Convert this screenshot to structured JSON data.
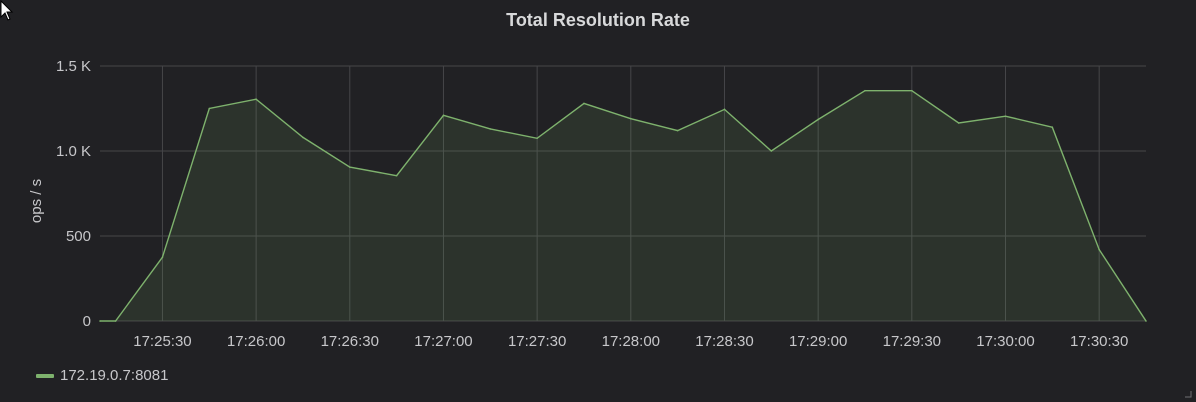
{
  "panel": {
    "title": "Total Resolution Rate"
  },
  "colors": {
    "series": "#7eb26d",
    "grid": "#464649",
    "background": "#212124"
  },
  "chart_data": {
    "type": "area",
    "title": "Total Resolution Rate",
    "xlabel": "",
    "ylabel": "ops / s",
    "x": [
      "17:25:10",
      "17:25:15",
      "17:25:30",
      "17:25:45",
      "17:26:00",
      "17:26:15",
      "17:26:30",
      "17:26:45",
      "17:27:00",
      "17:27:15",
      "17:27:30",
      "17:27:45",
      "17:28:00",
      "17:28:15",
      "17:28:30",
      "17:28:45",
      "17:29:00",
      "17:29:15",
      "17:29:30",
      "17:29:45",
      "17:30:00",
      "17:30:15",
      "17:30:30",
      "17:30:45"
    ],
    "series": [
      {
        "name": "172.19.0.7:8081",
        "values": [
          0,
          0,
          375,
          1250,
          1305,
          1080,
          905,
          855,
          1210,
          1130,
          1075,
          1280,
          1190,
          1120,
          1245,
          1000,
          1185,
          1355,
          1355,
          1165,
          1205,
          1140,
          420,
          0
        ]
      }
    ],
    "ylim": [
      0,
      1500
    ],
    "yticks": [
      0,
      500,
      1000,
      1500
    ],
    "ytick_labels": [
      "0",
      "500",
      "1.0 K",
      "1.5 K"
    ],
    "xticks": [
      "17:25:30",
      "17:26:00",
      "17:26:30",
      "17:27:00",
      "17:27:30",
      "17:28:00",
      "17:28:30",
      "17:29:00",
      "17:29:30",
      "17:30:00",
      "17:30:30"
    ],
    "grid": true,
    "legend": "bottom-left"
  },
  "legend": {
    "label": "172.19.0.7:8081"
  }
}
